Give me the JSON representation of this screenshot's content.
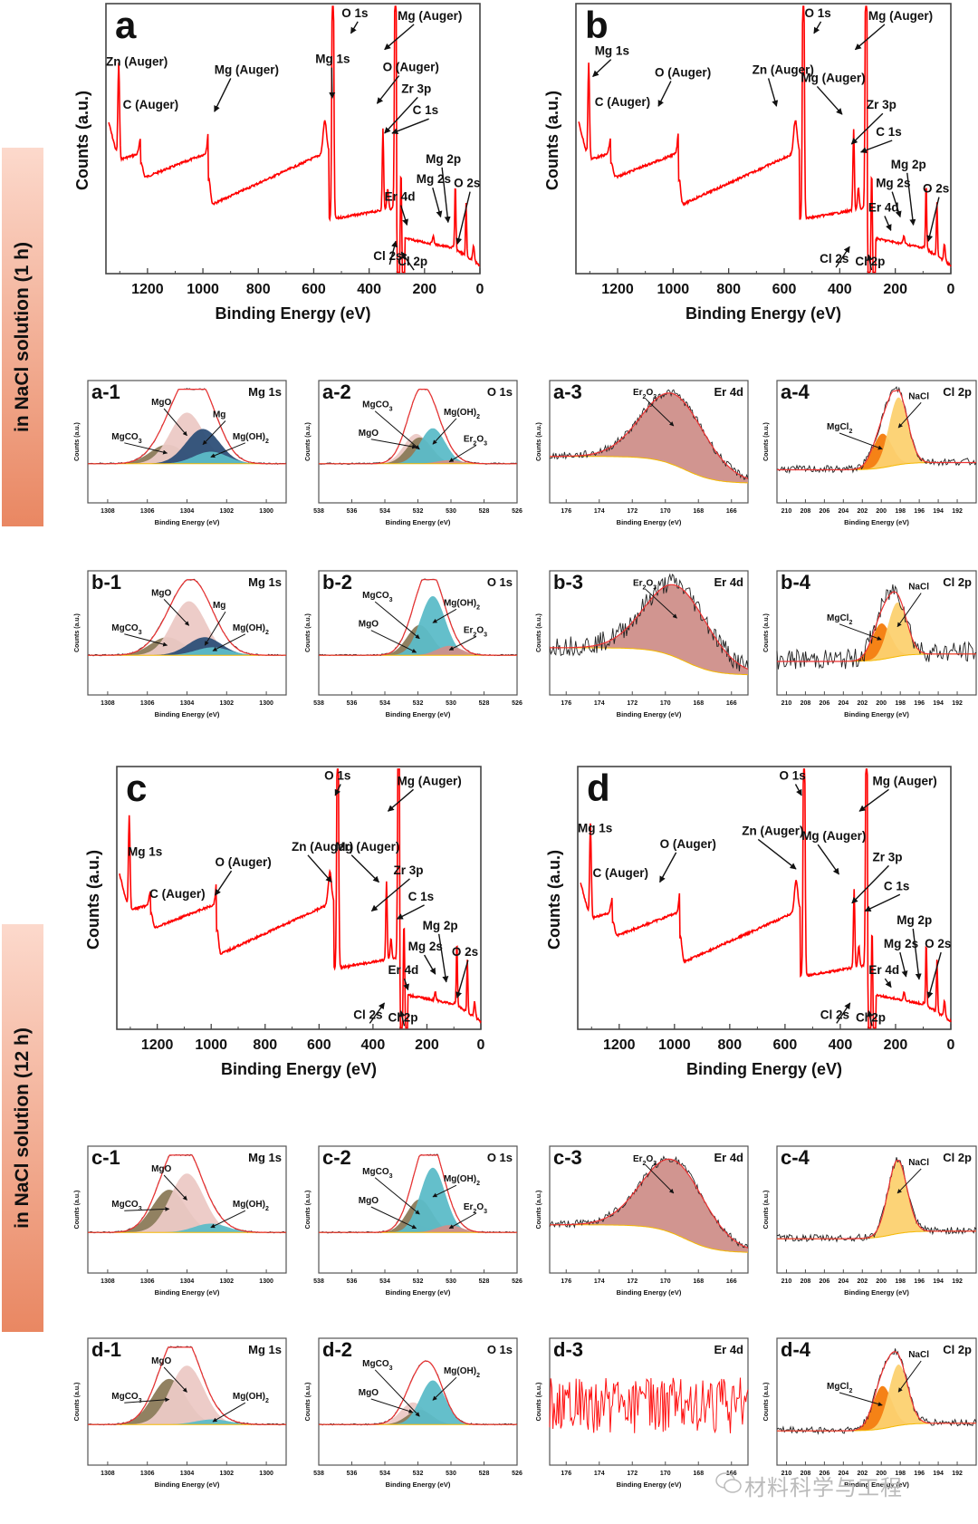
{
  "sidebar": [
    {
      "label": "in NaCl solution (1 h)"
    },
    {
      "label": "in NaCl solution (12 h)"
    }
  ],
  "watermark": {
    "text": "材料科学与工程",
    "icon": "wechat-icon"
  },
  "colors": {
    "survey_line": "#ff0000",
    "fit_envelope": "#ee3333",
    "raw_data": "#222222",
    "background": "#f5b800",
    "MgO": "#ecc9c5",
    "MgCO3": "#8b7a58",
    "Mg": "#2d4f78",
    "Mg(OH)2": "#5cbcc8",
    "Er2O3": "#cf8f8a",
    "Er2O3_O1s": "#d08a88",
    "MgCl2": "#f47b0a",
    "NaCl": "#fcd170",
    "sidebar_top": "#fcd9cc",
    "sidebar_bottom": "#e98762"
  },
  "chart_data": [
    {
      "id": "a",
      "type": "line",
      "title": "",
      "panel_label": "a",
      "xlabel": "Binding Energy (eV)",
      "ylabel": "Counts (a.u.)",
      "xlim": [
        1350,
        0
      ],
      "xticks": [
        1200,
        1000,
        800,
        600,
        400,
        200,
        0
      ],
      "peaks": [
        {
          "label": "O 1s",
          "x": 531
        },
        {
          "label": "Mg (Auger)",
          "x": 305
        },
        {
          "label": "Zn (Auger)",
          "x": 560
        },
        {
          "label": "Mg (Auger)",
          "x": 350
        },
        {
          "label": "Mg 1s",
          "x": 1304
        },
        {
          "label": "O (Auger)",
          "x": 978
        },
        {
          "label": "C (Auger)",
          "x": 1223
        },
        {
          "label": "Zr 3p",
          "x": 333
        },
        {
          "label": "C 1s",
          "x": 285
        },
        {
          "label": "Mg 2p",
          "x": 50
        },
        {
          "label": "Mg 2s",
          "x": 89
        },
        {
          "label": "O 2s",
          "x": 23
        },
        {
          "label": "Er 4d",
          "x": 169
        },
        {
          "label": "Cl 2s",
          "x": 270
        },
        {
          "label": "Cl 2p",
          "x": 199
        }
      ]
    },
    {
      "id": "b",
      "type": "line",
      "panel_label": "b",
      "xlabel": "Binding Energy (eV)",
      "ylabel": "Counts (a.u.)",
      "xlim": [
        1350,
        0
      ],
      "xticks": [
        1200,
        1000,
        800,
        600,
        400,
        200,
        0
      ],
      "peaks": [
        {
          "label": "O 1s"
        },
        {
          "label": "Mg (Auger)"
        },
        {
          "label": "Mg 1s"
        },
        {
          "label": "O (Auger)"
        },
        {
          "label": "Zn (Auger)"
        },
        {
          "label": "Mg (Auger)"
        },
        {
          "label": "C (Auger)"
        },
        {
          "label": "Zr 3p"
        },
        {
          "label": "C 1s"
        },
        {
          "label": "Mg 2p"
        },
        {
          "label": "Mg 2s"
        },
        {
          "label": "O 2s"
        },
        {
          "label": "Er 4d"
        },
        {
          "label": "Cl 2s"
        },
        {
          "label": "Cl 2p"
        }
      ]
    },
    {
      "id": "c",
      "type": "line",
      "panel_label": "c",
      "xlabel": "Binding Energy (eV)",
      "ylabel": "Counts (a.u.)",
      "xlim": [
        1350,
        0
      ],
      "xticks": [
        1200,
        1000,
        800,
        600,
        400,
        200,
        0
      ],
      "peaks": [
        {
          "label": "O 1s"
        },
        {
          "label": "Mg (Auger)"
        },
        {
          "label": "Mg 1s"
        },
        {
          "label": "O (Auger)"
        },
        {
          "label": "Zn (Auger)"
        },
        {
          "label": "Mg (Auger)"
        },
        {
          "label": "C (Auger)"
        },
        {
          "label": "Zr 3p"
        },
        {
          "label": "C 1s"
        },
        {
          "label": "Mg 2p"
        },
        {
          "label": "Mg 2s"
        },
        {
          "label": "O 2s"
        },
        {
          "label": "Er 4d"
        },
        {
          "label": "Cl 2s"
        },
        {
          "label": "Cl 2p"
        }
      ]
    },
    {
      "id": "d",
      "type": "line",
      "panel_label": "d",
      "xlabel": "Binding Energy (eV)",
      "ylabel": "Counts (a.u.)",
      "xlim": [
        1350,
        0
      ],
      "xticks": [
        1200,
        1000,
        800,
        600,
        400,
        200,
        0
      ],
      "peaks": [
        {
          "label": "O 1s"
        },
        {
          "label": "Mg (Auger)"
        },
        {
          "label": "Mg 1s"
        },
        {
          "label": "O (Auger)"
        },
        {
          "label": "Zn (Auger)"
        },
        {
          "label": "Mg (Auger)"
        },
        {
          "label": "C (Auger)"
        },
        {
          "label": "Zr 3p"
        },
        {
          "label": "C 1s"
        },
        {
          "label": "Mg 2p"
        },
        {
          "label": "Mg 2s"
        },
        {
          "label": "O 2s"
        },
        {
          "label": "Er 4d"
        },
        {
          "label": "Cl 2s"
        },
        {
          "label": "Cl 2p"
        }
      ]
    },
    {
      "id": "a-1",
      "type": "area",
      "panel_label": "a-1",
      "region": "Mg 1s",
      "xlabel": "Binding Energy (eV)",
      "ylabel": "Counts (a.u.)",
      "xlim": [
        1309,
        1299
      ],
      "xticks": [
        1308,
        1306,
        1304,
        1302,
        1300
      ],
      "components": [
        {
          "name": "MgCO3",
          "center": 1305.0,
          "height": 0.27
        },
        {
          "name": "MgO",
          "center": 1304.0,
          "height": 0.72
        },
        {
          "name": "Mg",
          "center": 1303.2,
          "height": 0.49
        },
        {
          "name": "Mg(OH)2",
          "center": 1302.8,
          "height": 0.17
        }
      ],
      "envelope_peak": {
        "x": 1303.8,
        "y": 1.0
      }
    },
    {
      "id": "a-2",
      "type": "area",
      "panel_label": "a-2",
      "region": "O 1s",
      "xlabel": "Binding Energy (eV)",
      "ylabel": "Counts (a.u.)",
      "xlim": [
        538,
        526
      ],
      "xticks": [
        538,
        536,
        534,
        532,
        530,
        528,
        526
      ],
      "components": [
        {
          "name": "MgO",
          "center": 532.1,
          "height": 0.42
        },
        {
          "name": "MgCO3",
          "center": 531.9,
          "height": 0.37
        },
        {
          "name": "Mg(OH)2",
          "center": 531.1,
          "height": 0.5
        },
        {
          "name": "Er2O3",
          "center": 530.1,
          "height": 0.05
        }
      ],
      "envelope_peak": {
        "x": 531.6,
        "y": 1.0
      }
    },
    {
      "id": "a-3",
      "type": "area",
      "panel_label": "a-3",
      "region": "Er 4d",
      "xlabel": "Binding Energy (eV)",
      "ylabel": "Counts (a.u.)",
      "xlim": [
        177,
        165
      ],
      "xticks": [
        176,
        174,
        172,
        170,
        168,
        166
      ],
      "components": [
        {
          "name": "Er2O3",
          "center": 169.5,
          "height": 1.0
        }
      ]
    },
    {
      "id": "a-4",
      "type": "area",
      "panel_label": "a-4",
      "region": "Cl 2p",
      "xlabel": "Binding Energy (eV)",
      "ylabel": "Counts (a.u.)",
      "xlim": [
        211,
        190
      ],
      "xticks": [
        210,
        208,
        206,
        204,
        202,
        200,
        198,
        196,
        194,
        192
      ],
      "components": [
        {
          "name": "MgCl2",
          "center": 199.9,
          "height": 0.48
        },
        {
          "name": "NaCl",
          "center": 198.2,
          "height": 0.95
        }
      ]
    },
    {
      "id": "b-1",
      "type": "area",
      "panel_label": "b-1",
      "region": "Mg 1s",
      "xlabel": "Binding Energy (eV)",
      "ylabel": "Counts (a.u.)",
      "xlim": [
        1309,
        1299
      ],
      "xticks": [
        1308,
        1306,
        1304,
        1302,
        1300
      ],
      "components": [
        {
          "name": "MgCO3",
          "center": 1305.0,
          "height": 0.25
        },
        {
          "name": "MgO",
          "center": 1303.9,
          "height": 0.75
        },
        {
          "name": "Mg",
          "center": 1303.1,
          "height": 0.25
        },
        {
          "name": "Mg(OH)2",
          "center": 1302.7,
          "height": 0.11
        }
      ],
      "envelope_peak": {
        "x": 1303.8,
        "y": 1.0
      }
    },
    {
      "id": "b-2",
      "type": "area",
      "panel_label": "b-2",
      "region": "O 1s",
      "xlabel": "Binding Energy (eV)",
      "ylabel": "Counts (a.u.)",
      "xlim": [
        538,
        526
      ],
      "xticks": [
        538,
        536,
        534,
        532,
        530,
        528,
        526
      ],
      "components": [
        {
          "name": "MgO",
          "center": 532.1,
          "height": 0.07
        },
        {
          "name": "MgCO3",
          "center": 531.9,
          "height": 0.42
        },
        {
          "name": "Mg(OH)2",
          "center": 531.1,
          "height": 0.82
        },
        {
          "name": "Er2O3",
          "center": 530.1,
          "height": 0.13
        }
      ],
      "envelope_peak": {
        "x": 531.3,
        "y": 1.0
      }
    },
    {
      "id": "b-3",
      "type": "area",
      "panel_label": "b-3",
      "region": "Er 4d",
      "xlabel": "Binding Energy (eV)",
      "ylabel": "Counts (a.u.)",
      "xlim": [
        177,
        165
      ],
      "xticks": [
        176,
        174,
        172,
        170,
        168,
        166
      ],
      "components": [
        {
          "name": "Er2O3",
          "center": 169.3,
          "height": 1.0
        }
      ]
    },
    {
      "id": "b-4",
      "type": "area",
      "panel_label": "b-4",
      "region": "Cl 2p",
      "xlabel": "Binding Energy (eV)",
      "ylabel": "Counts (a.u.)",
      "xlim": [
        211,
        190
      ],
      "xticks": [
        210,
        208,
        206,
        204,
        202,
        200,
        198,
        196,
        194,
        192
      ],
      "components": [
        {
          "name": "MgCl2",
          "center": 200.0,
          "height": 0.5
        },
        {
          "name": "NaCl",
          "center": 198.3,
          "height": 0.75
        }
      ]
    },
    {
      "id": "c-1",
      "type": "area",
      "panel_label": "c-1",
      "region": "Mg 1s",
      "xlabel": "Binding Energy (eV)",
      "ylabel": "Counts (a.u.)",
      "xlim": [
        1309,
        1299
      ],
      "xticks": [
        1308,
        1306,
        1304,
        1302,
        1300
      ],
      "components": [
        {
          "name": "MgCO3",
          "center": 1304.9,
          "height": 0.58
        },
        {
          "name": "MgO",
          "center": 1304.0,
          "height": 0.8
        },
        {
          "name": "Mg(OH)2",
          "center": 1302.8,
          "height": 0.12
        }
      ],
      "envelope_peak": {
        "x": 1304.2,
        "y": 1.0
      }
    },
    {
      "id": "c-2",
      "type": "area",
      "panel_label": "c-2",
      "region": "O 1s",
      "xlabel": "Binding Energy (eV)",
      "ylabel": "Counts (a.u.)",
      "xlim": [
        538,
        526
      ],
      "xticks": [
        538,
        536,
        534,
        532,
        530,
        528,
        526
      ],
      "components": [
        {
          "name": "MgO",
          "center": 532.1,
          "height": 0.1
        },
        {
          "name": "MgCO3",
          "center": 531.9,
          "height": 0.45
        },
        {
          "name": "Mg(OH)2",
          "center": 531.1,
          "height": 0.88
        },
        {
          "name": "Er2O3",
          "center": 530.1,
          "height": 0.1
        }
      ],
      "envelope_peak": {
        "x": 531.3,
        "y": 1.0
      }
    },
    {
      "id": "c-3",
      "type": "area",
      "panel_label": "c-3",
      "region": "Er 4d",
      "xlabel": "Binding Energy (eV)",
      "ylabel": "Counts (a.u.)",
      "xlim": [
        177,
        165
      ],
      "xticks": [
        176,
        174,
        172,
        170,
        168,
        166
      ],
      "components": [
        {
          "name": "Er2O3",
          "center": 169.5,
          "height": 1.0
        }
      ]
    },
    {
      "id": "c-4",
      "type": "area",
      "panel_label": "c-4",
      "region": "Cl 2p",
      "xlabel": "Binding Energy (eV)",
      "ylabel": "Counts (a.u.)",
      "xlim": [
        211,
        190
      ],
      "xticks": [
        210,
        208,
        206,
        204,
        202,
        200,
        198,
        196,
        194,
        192
      ],
      "components": [
        {
          "name": "NaCl",
          "center": 198.3,
          "height": 1.0
        }
      ]
    },
    {
      "id": "d-1",
      "type": "area",
      "panel_label": "d-1",
      "region": "Mg 1s",
      "xlabel": "Binding Energy (eV)",
      "ylabel": "Counts (a.u.)",
      "xlim": [
        1309,
        1299
      ],
      "xticks": [
        1308,
        1306,
        1304,
        1302,
        1300
      ],
      "components": [
        {
          "name": "MgCO3",
          "center": 1304.9,
          "height": 0.62
        },
        {
          "name": "MgO",
          "center": 1304.0,
          "height": 0.8
        },
        {
          "name": "Mg(OH)2",
          "center": 1302.7,
          "height": 0.07
        }
      ],
      "envelope_peak": {
        "x": 1304.2,
        "y": 1.0
      }
    },
    {
      "id": "d-2",
      "type": "area",
      "panel_label": "d-2",
      "region": "O 1s",
      "xlabel": "Binding Energy (eV)",
      "ylabel": "Counts (a.u.)",
      "xlim": [
        538,
        526
      ],
      "xticks": [
        538,
        536,
        534,
        532,
        530,
        528,
        526
      ],
      "components": [
        {
          "name": "MgO",
          "center": 532.3,
          "height": 0.3
        },
        {
          "name": "MgCO3",
          "center": 531.9,
          "height": 0.2
        },
        {
          "name": "Mg(OH)2",
          "center": 531.1,
          "height": 0.6
        }
      ],
      "envelope_peak": {
        "x": 531.5,
        "y": 1.0
      }
    },
    {
      "id": "d-3",
      "type": "line",
      "panel_label": "d-3",
      "region": "Er 4d",
      "xlabel": "Binding Energy (eV)",
      "ylabel": "Counts (a.u.)",
      "xlim": [
        177,
        165
      ],
      "xticks": [
        176,
        174,
        172,
        170,
        168,
        166
      ],
      "components": []
    },
    {
      "id": "d-4",
      "type": "area",
      "panel_label": "d-4",
      "region": "Cl 2p",
      "xlabel": "Binding Energy (eV)",
      "ylabel": "Counts (a.u.)",
      "xlim": [
        211,
        190
      ],
      "xticks": [
        210,
        208,
        206,
        204,
        202,
        200,
        198,
        196,
        194,
        192
      ],
      "components": [
        {
          "name": "MgCl2",
          "center": 199.9,
          "height": 0.58
        },
        {
          "name": "NaCl",
          "center": 198.2,
          "height": 0.83
        }
      ]
    }
  ]
}
